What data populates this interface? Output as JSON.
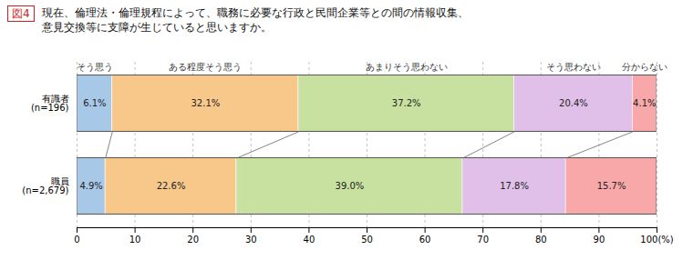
{
  "chart_data": {
    "type": "bar",
    "orientation": "horizontal",
    "stacked": true,
    "title": "図4",
    "subtitle": "現在、倫理法・倫理規程によって、職務に必要な行政と民間企業等との間の情報収集、\n意見交換等に支障が生じていると思いますか。",
    "categories": [
      "有識者\n(n=196)",
      "職員\n(n=2,679)"
    ],
    "series": [
      {
        "name": "そう思う",
        "color": "#a8c8e8",
        "values": [
          6.1,
          4.9
        ],
        "value_labels": [
          "6.1%",
          "4.9%"
        ]
      },
      {
        "name": "ある程度そう思う",
        "color": "#f8c88a",
        "values": [
          32.1,
          22.6
        ],
        "value_labels": [
          "32.1%",
          "22.6%"
        ]
      },
      {
        "name": "あまりそう思わない",
        "color": "#c8e0a0",
        "values": [
          37.2,
          39.0
        ],
        "value_labels": [
          "37.2%",
          "39.0%"
        ]
      },
      {
        "name": "そう思わない",
        "color": "#e0c0e8",
        "values": [
          20.4,
          17.8
        ],
        "value_labels": [
          "20.4%",
          "17.8%"
        ]
      },
      {
        "name": "分からない",
        "color": "#f8a8a8",
        "values": [
          4.1,
          15.7
        ],
        "value_labels": [
          "4.1%",
          "15.7%"
        ]
      }
    ],
    "xlim": [
      0,
      100
    ],
    "xticks": [
      0,
      10,
      20,
      30,
      40,
      50,
      60,
      70,
      80,
      90,
      {
        "value": 100,
        "label": "100(%)"
      }
    ],
    "grid": true,
    "legend": "top",
    "data_labels": true
  }
}
